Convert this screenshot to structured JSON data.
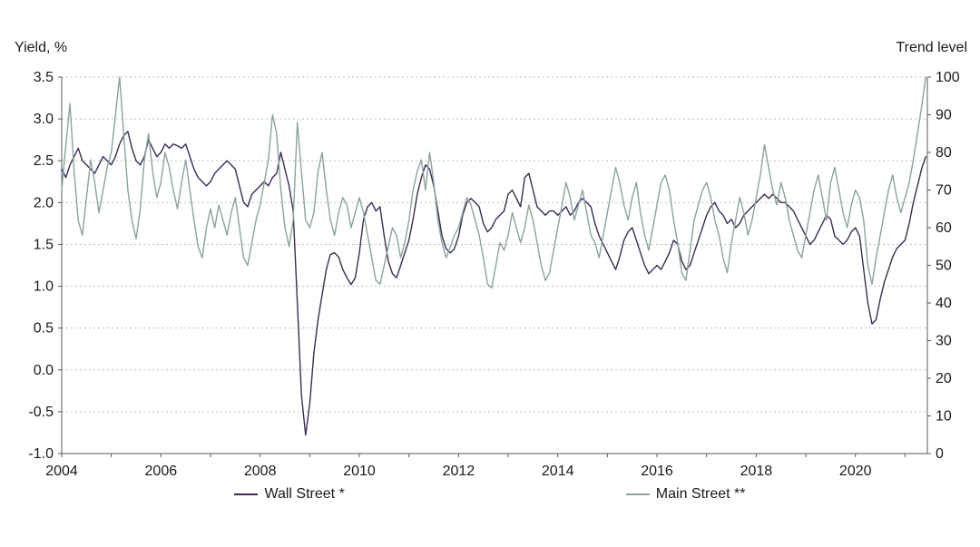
{
  "chart_data": {
    "type": "line",
    "title": "",
    "left_axis": {
      "label": "Yield, %",
      "min": -1.0,
      "max": 3.5,
      "step": 0.5,
      "tick_labels": [
        "3.5",
        "3.0",
        "2.5",
        "2.0",
        "1.5",
        "1.0",
        "0.5",
        "0.0",
        "-0.5",
        "-1.0"
      ]
    },
    "right_axis": {
      "label": "Trend level",
      "min": 0,
      "max": 100,
      "step": 10,
      "tick_labels": [
        "100",
        "90",
        "80",
        "70",
        "60",
        "50",
        "40",
        "30",
        "20",
        "10",
        "0"
      ]
    },
    "x_axis": {
      "min": 2004,
      "max": 2021.45,
      "tick_labels": [
        "2004",
        "2006",
        "2008",
        "2010",
        "2012",
        "2014",
        "2016",
        "2018",
        "2020"
      ],
      "minor_tick_years": [
        2004,
        2005,
        2006,
        2007,
        2008,
        2009,
        2010,
        2011,
        2012,
        2013,
        2014,
        2015,
        2016,
        2017,
        2018,
        2019,
        2020,
        2021
      ]
    },
    "grid": "horizontal-dotted",
    "legend_position": "bottom",
    "series": [
      {
        "name": "Wall Street *",
        "axis": "left",
        "color": "#3d2b56",
        "x_start": 2004,
        "x_step_months": 1,
        "values": [
          2.4,
          2.3,
          2.45,
          2.55,
          2.65,
          2.5,
          2.45,
          2.4,
          2.35,
          2.45,
          2.55,
          2.5,
          2.45,
          2.55,
          2.7,
          2.8,
          2.85,
          2.65,
          2.5,
          2.45,
          2.55,
          2.75,
          2.65,
          2.55,
          2.6,
          2.7,
          2.65,
          2.7,
          2.68,
          2.65,
          2.7,
          2.55,
          2.4,
          2.3,
          2.25,
          2.2,
          2.25,
          2.35,
          2.4,
          2.45,
          2.5,
          2.45,
          2.4,
          2.2,
          2.0,
          1.95,
          2.1,
          2.15,
          2.2,
          2.25,
          2.2,
          2.3,
          2.35,
          2.6,
          2.4,
          2.2,
          1.9,
          0.8,
          -0.3,
          -0.78,
          -0.4,
          0.2,
          0.6,
          0.9,
          1.2,
          1.38,
          1.4,
          1.35,
          1.2,
          1.1,
          1.02,
          1.1,
          1.4,
          1.8,
          1.95,
          2.0,
          1.9,
          1.95,
          1.6,
          1.3,
          1.15,
          1.1,
          1.25,
          1.4,
          1.55,
          1.8,
          2.1,
          2.3,
          2.45,
          2.4,
          2.2,
          1.9,
          1.6,
          1.45,
          1.4,
          1.45,
          1.6,
          1.85,
          2.0,
          2.05,
          2.0,
          1.95,
          1.75,
          1.65,
          1.7,
          1.8,
          1.85,
          1.9,
          2.1,
          2.15,
          2.05,
          1.95,
          2.3,
          2.35,
          2.15,
          1.95,
          1.9,
          1.85,
          1.9,
          1.9,
          1.85,
          1.9,
          1.95,
          1.85,
          1.9,
          2.0,
          2.05,
          2.0,
          1.95,
          1.75,
          1.6,
          1.5,
          1.4,
          1.3,
          1.2,
          1.35,
          1.55,
          1.65,
          1.7,
          1.55,
          1.4,
          1.25,
          1.15,
          1.2,
          1.25,
          1.2,
          1.3,
          1.4,
          1.55,
          1.5,
          1.3,
          1.2,
          1.25,
          1.4,
          1.55,
          1.7,
          1.85,
          1.95,
          2.0,
          1.9,
          1.85,
          1.75,
          1.8,
          1.7,
          1.75,
          1.85,
          1.9,
          1.95,
          2.0,
          2.05,
          2.1,
          2.05,
          2.1,
          2.05,
          2.0,
          2.0,
          1.95,
          1.9,
          1.8,
          1.7,
          1.6,
          1.5,
          1.55,
          1.65,
          1.75,
          1.85,
          1.8,
          1.6,
          1.55,
          1.5,
          1.55,
          1.65,
          1.7,
          1.6,
          1.2,
          0.8,
          0.55,
          0.6,
          0.85,
          1.05,
          1.2,
          1.35,
          1.45,
          1.5,
          1.55,
          1.75,
          2.0,
          2.2,
          2.4,
          2.55
        ]
      },
      {
        "name": "Main Street **",
        "axis": "right",
        "color": "#8aa49c",
        "x_start": 2004,
        "x_step_months": 1,
        "values": [
          70,
          82,
          93,
          75,
          62,
          58,
          68,
          78,
          72,
          64,
          70,
          76,
          80,
          90,
          100,
          85,
          70,
          62,
          57,
          65,
          78,
          85,
          75,
          68,
          72,
          80,
          76,
          70,
          65,
          72,
          78,
          70,
          62,
          55,
          52,
          60,
          65,
          60,
          66,
          62,
          58,
          64,
          68,
          60,
          52,
          50,
          56,
          62,
          66,
          72,
          78,
          90,
          85,
          70,
          60,
          55,
          62,
          88,
          75,
          62,
          60,
          64,
          75,
          80,
          70,
          62,
          58,
          64,
          68,
          66,
          60,
          64,
          68,
          64,
          58,
          52,
          46,
          45,
          50,
          55,
          60,
          58,
          52,
          56,
          62,
          70,
          75,
          78,
          70,
          80,
          72,
          62,
          56,
          52,
          55,
          58,
          60,
          64,
          68,
          66,
          62,
          58,
          52,
          45,
          44,
          50,
          56,
          54,
          58,
          64,
          60,
          56,
          60,
          66,
          62,
          56,
          50,
          46,
          48,
          54,
          60,
          66,
          72,
          68,
          62,
          66,
          70,
          64,
          58,
          56,
          52,
          58,
          64,
          70,
          76,
          72,
          66,
          62,
          68,
          72,
          64,
          58,
          54,
          60,
          66,
          72,
          74,
          70,
          62,
          56,
          48,
          46,
          54,
          62,
          66,
          70,
          72,
          68,
          62,
          58,
          52,
          48,
          56,
          62,
          68,
          64,
          58,
          62,
          68,
          74,
          82,
          76,
          70,
          66,
          72,
          68,
          62,
          58,
          54,
          52,
          58,
          64,
          70,
          74,
          68,
          62,
          72,
          76,
          70,
          64,
          60,
          66,
          70,
          68,
          62,
          50,
          45,
          52,
          58,
          64,
          70,
          74,
          68,
          64,
          68,
          72,
          78,
          85,
          92,
          100
        ]
      }
    ]
  }
}
